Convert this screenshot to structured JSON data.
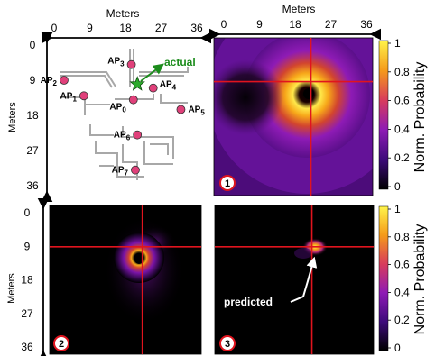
{
  "chart_data": [
    {
      "type": "diagram",
      "panel": "floor_map",
      "xlabel": "Meters",
      "ylabel": "Meters",
      "xticks": [
        "0",
        "9",
        "18",
        "27",
        "36"
      ],
      "yticks": [
        "0",
        "9",
        "18",
        "27",
        "36"
      ],
      "xlim": [
        0,
        36
      ],
      "ylim": [
        0,
        36
      ],
      "access_points": [
        {
          "label": "AP",
          "sub": "0",
          "x": 20.0,
          "y": 14.0
        },
        {
          "label": "AP",
          "sub": "1",
          "x": 7.5,
          "y": 13.0
        },
        {
          "label": "AP",
          "sub": "2",
          "x": 2.5,
          "y": 9.0
        },
        {
          "label": "AP",
          "sub": "3",
          "x": 19.5,
          "y": 5.0
        },
        {
          "label": "AP",
          "sub": "4",
          "x": 25.0,
          "y": 11.0
        },
        {
          "label": "AP",
          "sub": "5",
          "x": 32.0,
          "y": 16.5
        },
        {
          "label": "AP",
          "sub": "6",
          "x": 21.0,
          "y": 23.0
        },
        {
          "label": "AP",
          "sub": "7",
          "x": 20.5,
          "y": 32.0
        }
      ],
      "actual": {
        "label": "actual",
        "x": 21.0,
        "y": 10.0
      }
    },
    {
      "type": "heatmap",
      "panel_label": "1",
      "xlabel": "Meters",
      "xticks": [
        "0",
        "9",
        "18",
        "27",
        "36"
      ],
      "xlim": [
        0,
        36
      ],
      "ylim": [
        0,
        36
      ],
      "crosshair": {
        "x": 22.0,
        "y": 10.0
      },
      "colorbar": {
        "label": "Norm. Probability",
        "ticks": [
          "1",
          "0.8",
          "0.6",
          "0.4",
          "0.2",
          "0"
        ]
      }
    },
    {
      "type": "heatmap",
      "panel_label": "2",
      "ylabel": "Meters",
      "yticks": [
        "0",
        "9",
        "18",
        "27",
        "36"
      ],
      "xlim": [
        0,
        36
      ],
      "ylim": [
        0,
        36
      ],
      "crosshair": {
        "x": 22.0,
        "y": 10.0
      }
    },
    {
      "type": "heatmap",
      "panel_label": "3",
      "xlim": [
        0,
        36
      ],
      "ylim": [
        0,
        36
      ],
      "crosshair": {
        "x": 22.0,
        "y": 10.0
      },
      "annotation": "predicted",
      "predicted": {
        "x": 23.5,
        "y": 8.5
      },
      "colorbar": {
        "label": "Norm. Probability",
        "ticks": [
          "1",
          "0.8",
          "0.6",
          "0.4",
          "0.2",
          "0"
        ]
      }
    }
  ],
  "colors": {
    "crosshair": "#e0141e",
    "ap_marker": "#e0407a",
    "actual_star": "#2eaa2e",
    "actual_text": "#1b8c1b",
    "walls": "#a8a8a8",
    "panel_badge": "#e0141e"
  }
}
